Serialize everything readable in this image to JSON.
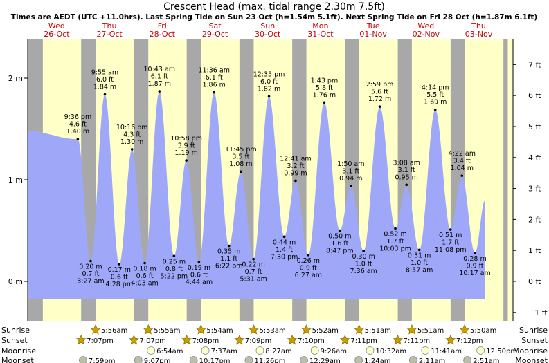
{
  "chart_data": {
    "type": "area",
    "title": "Crescent Head (max. tidal range 2.30m 7.5ft)",
    "subtitle": "Times are AEDT (UTC +11.0hrs). Last Spring Tide on Sun 23 Oct (h=1.54m 5.1ft). Next Spring Tide on Fri 28 Oct (h=1.87m 6.1ft)",
    "x_unit": "days since Wed 26-Oct 00:00",
    "xlim": [
      0,
      9
    ],
    "ylim": [
      -0.35,
      2.41
    ],
    "y_left_ticks": [
      {
        "v": 0,
        "label": "0 m"
      },
      {
        "v": 1,
        "label": "1 m"
      },
      {
        "v": 2,
        "label": "2 m"
      }
    ],
    "y_right_ticks": [
      {
        "v": -0.3048,
        "label": "−1 ft"
      },
      {
        "v": 0,
        "label": "0 ft"
      },
      {
        "v": 0.3048,
        "label": "1 ft"
      },
      {
        "v": 0.6096,
        "label": "2 ft"
      },
      {
        "v": 0.9144,
        "label": "3 ft"
      },
      {
        "v": 1.2192,
        "label": "4 ft"
      },
      {
        "v": 1.524,
        "label": "5 ft"
      },
      {
        "v": 1.8288,
        "label": "6 ft"
      },
      {
        "v": 2.1336,
        "label": "7 ft"
      }
    ],
    "days": [
      {
        "day": "Wed",
        "date": "26-Oct"
      },
      {
        "day": "Thu",
        "date": "27-Oct"
      },
      {
        "day": "Fri",
        "date": "28-Oct"
      },
      {
        "day": "Sat",
        "date": "29-Oct"
      },
      {
        "day": "Sun",
        "date": "30-Oct"
      },
      {
        "day": "Mon",
        "date": "31-Oct"
      },
      {
        "day": "Tue",
        "date": "01-Nov"
      },
      {
        "day": "Wed",
        "date": "02-Nov"
      },
      {
        "day": "Thu",
        "date": "03-Nov"
      }
    ],
    "night_spans": [
      [
        -0.05,
        0.237
      ],
      [
        0.963,
        1.236
      ],
      [
        1.963,
        2.236
      ],
      [
        2.964,
        3.235
      ],
      [
        3.964,
        4.234
      ],
      [
        4.965,
        5.233
      ],
      [
        5.965,
        6.232
      ],
      [
        6.966,
        7.232
      ],
      [
        7.967,
        8.231
      ],
      [
        8.968,
        9.05
      ]
    ],
    "tide_events": [
      {
        "t": 0.9,
        "h": 1.4,
        "type": "high",
        "time": "9:36 pm",
        "ft": "4.6 ft",
        "m": "1.40 m"
      },
      {
        "t": 1.144,
        "h": 0.2,
        "type": "low",
        "time": "3:27 am",
        "ft": "0.7 ft",
        "m": "0.20 m"
      },
      {
        "t": 1.413,
        "h": 1.84,
        "type": "high",
        "time": "9:55 am",
        "ft": "6.0 ft",
        "m": "1.84 m"
      },
      {
        "t": 1.686,
        "h": 0.17,
        "type": "low",
        "time": "4:28 pm",
        "ft": "0.6 ft",
        "m": "0.17 m"
      },
      {
        "t": 1.928,
        "h": 1.3,
        "type": "high",
        "time": "10:16 pm",
        "ft": "4.3 ft",
        "m": "1.30 m"
      },
      {
        "t": 2.169,
        "h": 0.18,
        "type": "low",
        "time": "4:03 am",
        "ft": "0.6 ft",
        "m": "0.18 m"
      },
      {
        "t": 2.447,
        "h": 1.87,
        "type": "high",
        "time": "10:43 am",
        "ft": "6.1 ft",
        "m": "1.87 m"
      },
      {
        "t": 2.724,
        "h": 0.25,
        "type": "low",
        "time": "5:22 pm",
        "ft": "0.8 ft",
        "m": "0.25 m"
      },
      {
        "t": 2.957,
        "h": 1.19,
        "type": "high",
        "time": "10:58 pm",
        "ft": "3.9 ft",
        "m": "1.19 m"
      },
      {
        "t": 3.197,
        "h": 0.19,
        "type": "low",
        "time": "4:44 am",
        "ft": "0.6 ft",
        "m": "0.19 m"
      },
      {
        "t": 3.483,
        "h": 1.86,
        "type": "high",
        "time": "11:36 am",
        "ft": "6.1 ft",
        "m": "1.86 m"
      },
      {
        "t": 3.765,
        "h": 0.35,
        "type": "low",
        "time": "6:22 pm",
        "ft": "1.1 ft",
        "m": "0.35 m"
      },
      {
        "t": 3.99,
        "h": 1.08,
        "type": "high",
        "time": "11:45 pm",
        "ft": "3.5 ft",
        "m": "1.08 m"
      },
      {
        "t": 4.23,
        "h": 0.22,
        "type": "low",
        "time": "5:31 am",
        "ft": "0.7 ft",
        "m": "0.22 m"
      },
      {
        "t": 4.524,
        "h": 1.82,
        "type": "high",
        "time": "12:35 pm",
        "ft": "6.0 ft",
        "m": "1.82 m"
      },
      {
        "t": 4.813,
        "h": 0.44,
        "type": "low",
        "time": "7:30 pm",
        "ft": "1.4 ft",
        "m": "0.44 m"
      },
      {
        "t": 5.028,
        "h": 0.99,
        "type": "high",
        "time": "12:41 am",
        "ft": "3.2 ft",
        "m": "0.99 m"
      },
      {
        "t": 5.269,
        "h": 0.26,
        "type": "low",
        "time": "6:27 am",
        "ft": "0.9 ft",
        "m": "0.26 m"
      },
      {
        "t": 5.572,
        "h": 1.76,
        "type": "high",
        "time": "1:43 pm",
        "ft": "5.8 ft",
        "m": "1.76 m"
      },
      {
        "t": 5.866,
        "h": 0.5,
        "type": "low",
        "time": "8:47 pm",
        "ft": "1.6 ft",
        "m": "0.50 m"
      },
      {
        "t": 6.076,
        "h": 0.94,
        "type": "high",
        "time": "1:50 am",
        "ft": "3.1 ft",
        "m": "0.94 m"
      },
      {
        "t": 6.317,
        "h": 0.3,
        "type": "low",
        "time": "7:36 am",
        "ft": "1.0 ft",
        "m": "0.30 m"
      },
      {
        "t": 6.624,
        "h": 1.72,
        "type": "high",
        "time": "2:59 pm",
        "ft": "5.6 ft",
        "m": "1.72 m"
      },
      {
        "t": 6.919,
        "h": 0.52,
        "type": "low",
        "time": "10:03 pm",
        "ft": "1.7 ft",
        "m": "0.52 m"
      },
      {
        "t": 7.131,
        "h": 0.95,
        "type": "high",
        "time": "3:08 am",
        "ft": "3.1 ft",
        "m": "0.95 m"
      },
      {
        "t": 7.373,
        "h": 0.31,
        "type": "low",
        "time": "8:57 am",
        "ft": "1.0 ft",
        "m": "0.31 m"
      },
      {
        "t": 7.676,
        "h": 1.69,
        "type": "high",
        "time": "4:14 pm",
        "ft": "5.5 ft",
        "m": "1.69 m"
      },
      {
        "t": 7.964,
        "h": 0.51,
        "type": "low",
        "time": "11:08 pm",
        "ft": "1.7 ft",
        "m": "0.51 m"
      },
      {
        "t": 8.182,
        "h": 1.04,
        "type": "high",
        "time": "4:22 am",
        "ft": "3.4 ft",
        "m": "1.04 m"
      },
      {
        "t": 8.428,
        "h": 0.28,
        "type": "low",
        "time": "10:17 am",
        "ft": "0.9 ft",
        "m": "0.28 m"
      }
    ],
    "curve_start": {
      "t": -0.05,
      "h": 1.48
    },
    "curve_end": {
      "t": 8.62,
      "h": 0.8
    },
    "sun_moon_rows": [
      {
        "label": "Sunrise",
        "icon": "sun-icon",
        "events": [
          {
            "t": 1.236,
            "time": "5:56am"
          },
          {
            "t": 2.236,
            "time": "5:55am"
          },
          {
            "t": 3.235,
            "time": "5:54am"
          },
          {
            "t": 4.234,
            "time": "5:53am"
          },
          {
            "t": 5.233,
            "time": "5:52am"
          },
          {
            "t": 6.232,
            "time": "5:51am"
          },
          {
            "t": 7.232,
            "time": "5:51am"
          },
          {
            "t": 8.231,
            "time": "5:50am"
          }
        ]
      },
      {
        "label": "Sunset",
        "icon": "sun-icon",
        "events": [
          {
            "t": 0.963,
            "time": "7:07pm"
          },
          {
            "t": 1.963,
            "time": "7:07pm"
          },
          {
            "t": 2.964,
            "time": "7:08pm"
          },
          {
            "t": 3.964,
            "time": "7:09pm"
          },
          {
            "t": 4.965,
            "time": "7:10pm"
          },
          {
            "t": 5.965,
            "time": "7:11pm"
          },
          {
            "t": 6.966,
            "time": "7:11pm"
          },
          {
            "t": 7.967,
            "time": "7:12pm"
          }
        ]
      },
      {
        "label": "Moonrise",
        "icon": "moon-icon",
        "events": [
          {
            "t": 2.288,
            "time": "6:54am"
          },
          {
            "t": 3.317,
            "time": "7:37am"
          },
          {
            "t": 4.352,
            "time": "8:27am"
          },
          {
            "t": 5.392,
            "time": "9:26am"
          },
          {
            "t": 6.439,
            "time": "10:32am"
          },
          {
            "t": 7.487,
            "time": "11:41am"
          },
          {
            "t": 8.535,
            "time": "12:50pm"
          }
        ]
      },
      {
        "label": "Moonset",
        "icon": "moon-icon",
        "events": [
          {
            "t": 0.999,
            "time": "7:59pm"
          },
          {
            "t": 2.047,
            "time": "9:07pm"
          },
          {
            "t": 3.095,
            "time": "10:17pm"
          },
          {
            "t": 4.143,
            "time": "11:26pm"
          },
          {
            "t": 5.187,
            "time": "12:29am"
          },
          {
            "t": 6.225,
            "time": "1:24am"
          },
          {
            "t": 7.258,
            "time": "2:11am"
          },
          {
            "t": 8.285,
            "time": "2:51am"
          }
        ]
      }
    ],
    "colors": {
      "day_bg": "#ffffc8",
      "night_bg": "#a8a8a8",
      "tide_fill": "#9fa8f8",
      "sun_fill": "#c9a000",
      "sun_stroke": "#8a6d00",
      "moon_fill": "#ffffc8",
      "moon_new_fill": "#bdbdaa"
    },
    "grid": false
  }
}
